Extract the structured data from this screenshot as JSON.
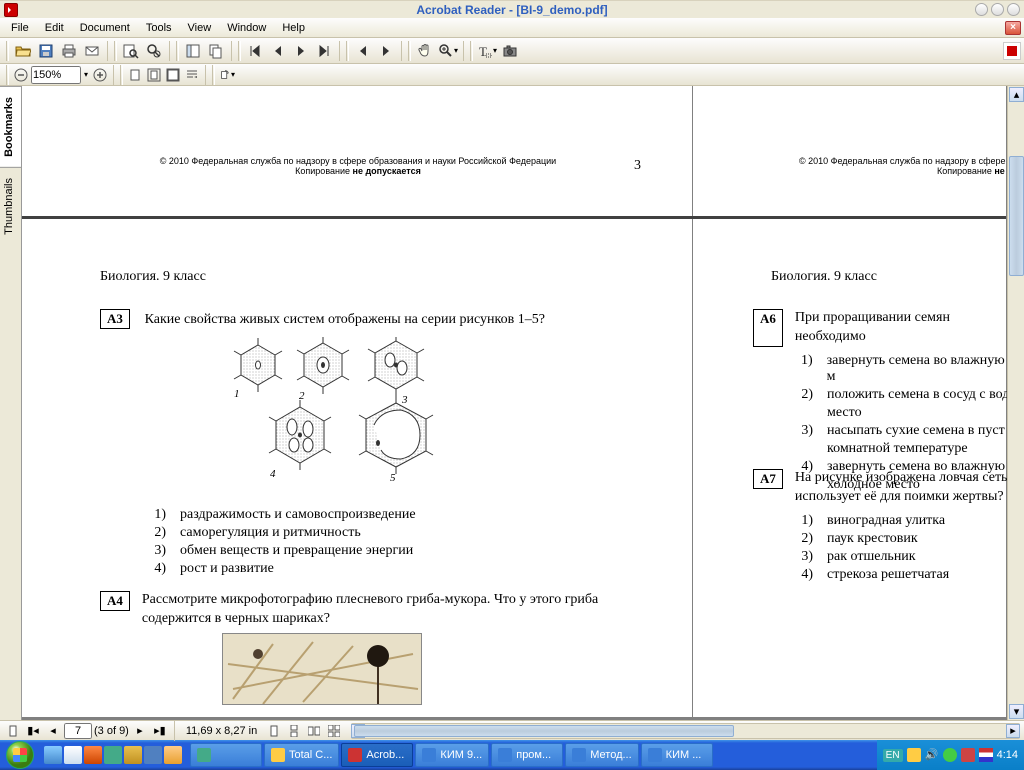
{
  "title": "Acrobat Reader - [BI-9_demo.pdf]",
  "menu": [
    "File",
    "Edit",
    "Document",
    "Tools",
    "View",
    "Window",
    "Help"
  ],
  "zoom_value": "150%",
  "copyright_full": "© 2010  Федеральная служба по надзору в сфере образования и науки Российской Федерации",
  "copyright_line2": "Копирование не допускается",
  "copyright_partial_1": "© 2010  Федеральная служба по надзору в сфере о",
  "copyright_partial_2": "Копирование не д",
  "page_number_top": "3",
  "subject_grade": "Биология. 9 класс",
  "q_a3": {
    "label": "А3",
    "text": "Какие свойства живых систем отображены на серии рисунков 1–5?",
    "options": [
      "раздражимость и самовоспроизведение",
      "саморегуляция и ритмичность",
      "обмен веществ и превращение энергии",
      "рост и развитие"
    ]
  },
  "q_a4": {
    "label": "А4",
    "text": "Рассмотрите микрофотографию плесневого гриба-мукора. Что у этого гриба содержится в черных шариках?"
  },
  "q_a6": {
    "label": "А6",
    "text": "При проращивании семян необходимо",
    "options": [
      "завернуть семена во влажную м",
      "положить семена в сосуд с вод",
      "место",
      "насыпать сухие семена в пуст",
      "комнатной температуре",
      "завернуть семена во влажную",
      "холодное место"
    ]
  },
  "q_a7": {
    "label": "А7",
    "text": "На рисунке изображена ловчая сеть.",
    "text2": "использует её для поимки жертвы?",
    "options": [
      "виноградная улитка",
      "паук крестовик",
      "рак отшельник",
      "стрекоза решетчатая"
    ]
  },
  "status": {
    "page_num": "7",
    "page_of": "(3 of 9)",
    "dims": "11,69 x 8,27 in"
  },
  "side_tabs": [
    "Bookmarks",
    "Thumbnails"
  ],
  "taskbar_items": [
    {
      "label": "",
      "color": "#4a8"
    },
    {
      "label": "Total C...",
      "color": "#fc4"
    },
    {
      "label": "Acrob...",
      "color": "#c33",
      "active": true
    },
    {
      "label": "КИМ 9...",
      "color": "#3a7ed8"
    },
    {
      "label": "пром...",
      "color": "#3a7ed8"
    },
    {
      "label": "Метод...",
      "color": "#3a7ed8"
    },
    {
      "label": "КИМ ...",
      "color": "#3a7ed8"
    }
  ],
  "tray": {
    "lang": "EN",
    "time": "4:14"
  },
  "colors": {
    "titletext": "#2e5fbf",
    "bg": "#ece9d8",
    "docbg": "#808080"
  }
}
